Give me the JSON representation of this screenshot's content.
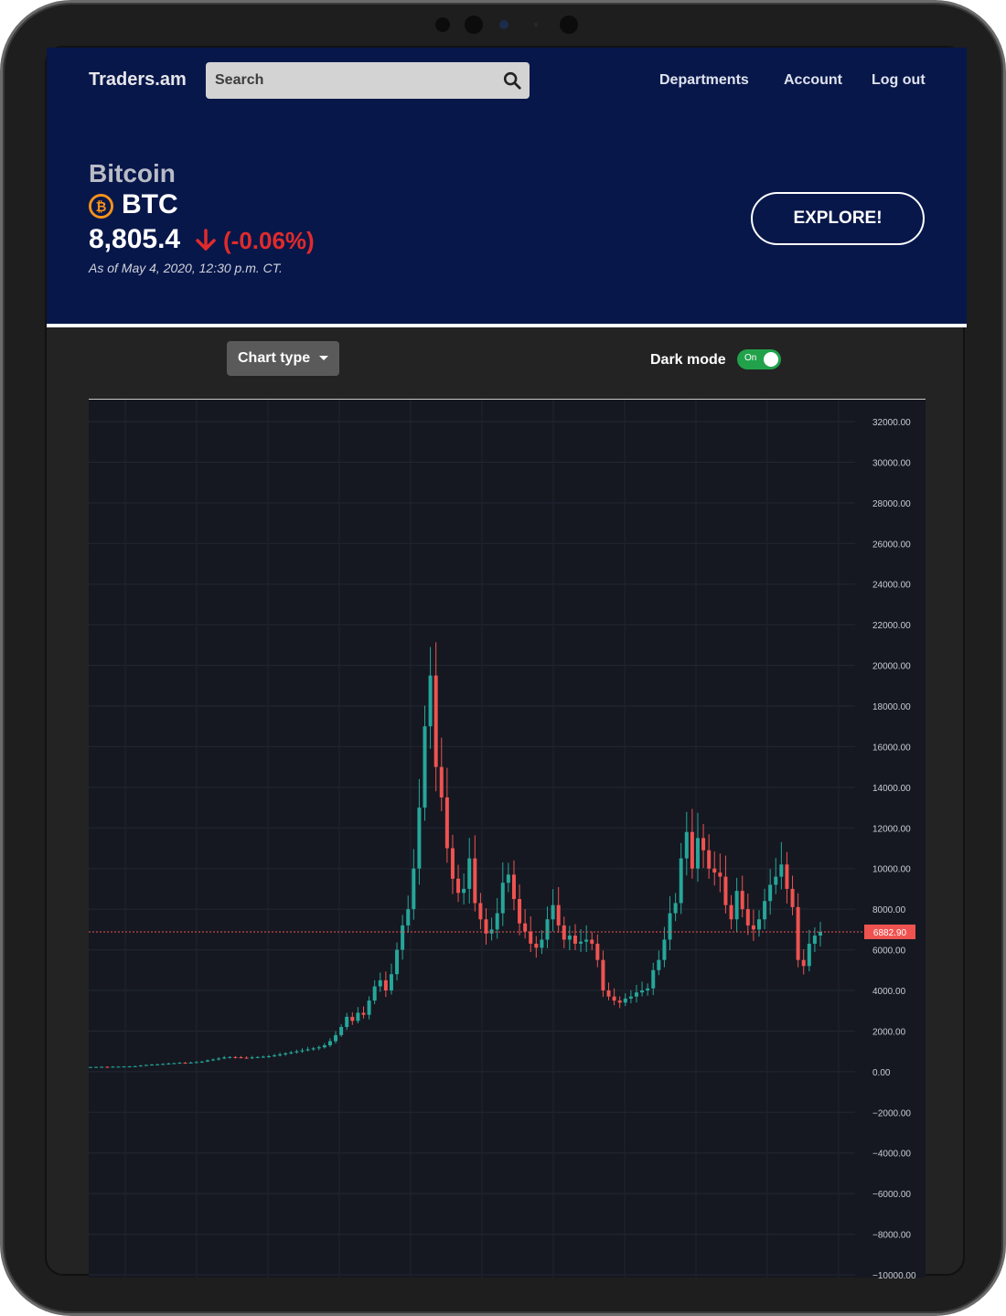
{
  "header": {
    "brand": "Traders.am",
    "search_placeholder": "Search",
    "nav": [
      "Departments",
      "Account",
      "Log out"
    ]
  },
  "asset": {
    "name": "Bitcoin",
    "ticker": "BTC",
    "price": "8,805.4",
    "change": "(-0.06%)",
    "as_of": "As of May 4, 2020, 12:30 p.m. CT.",
    "explore_label": "EXPLORE!"
  },
  "controls": {
    "chart_type_label": "Chart type",
    "dark_mode_label": "Dark mode",
    "toggle_label": "On"
  },
  "colors": {
    "header_bg": "#08174a",
    "up": "#26a69a",
    "down": "#ef5350",
    "price_line": "#ef5350",
    "negative_change": "#e02b2b"
  },
  "chart_data": {
    "type": "candlestick",
    "ylim": [
      -10000,
      32000
    ],
    "y_ticks": [
      "32000.00",
      "30000.00",
      "28000.00",
      "26000.00",
      "24000.00",
      "22000.00",
      "20000.00",
      "18000.00",
      "16000.00",
      "14000.00",
      "12000.00",
      "10000.00",
      "8000.00",
      "6000.00",
      "4000.00",
      "2000.00",
      "0.00",
      "-2000.00",
      "-4000.00",
      "-6000.00",
      "-8000.00",
      "-10000.00"
    ],
    "last_price": 6882.9,
    "last_price_label": "6882.90",
    "close_series": [
      230,
      235,
      240,
      238,
      245,
      250,
      255,
      260,
      270,
      300,
      330,
      350,
      360,
      380,
      400,
      420,
      440,
      430,
      450,
      470,
      500,
      560,
      600,
      650,
      700,
      720,
      710,
      690,
      680,
      700,
      720,
      740,
      760,
      800,
      850,
      900,
      950,
      1000,
      1050,
      1100,
      1150,
      1200,
      1300,
      1500,
      1800,
      2200,
      2700,
      2500,
      2900,
      2800,
      3500,
      4200,
      4500,
      4000,
      4800,
      6000,
      7200,
      8000,
      10000,
      13000,
      17000,
      19500,
      15000,
      13500,
      11000,
      9500,
      8800,
      9000,
      10500,
      8300,
      7500,
      6800,
      7000,
      7800,
      9300,
      9700,
      8500,
      7300,
      6900,
      6300,
      6100,
      6500,
      7500,
      8200,
      7200,
      6500,
      6700,
      6300,
      6400,
      6500,
      6300,
      5500,
      4000,
      3700,
      3500,
      3400,
      3600,
      3700,
      3900,
      4000,
      4100,
      5000,
      5500,
      6500,
      7800,
      8300,
      10500,
      11800,
      10000,
      11500,
      10900,
      10000,
      9800,
      9600,
      8200,
      7500,
      8900,
      8000,
      7200,
      7000,
      7500,
      8400,
      9200,
      9600,
      10200,
      9000,
      8100,
      5500,
      5200,
      6300,
      6700,
      6882.9
    ]
  }
}
